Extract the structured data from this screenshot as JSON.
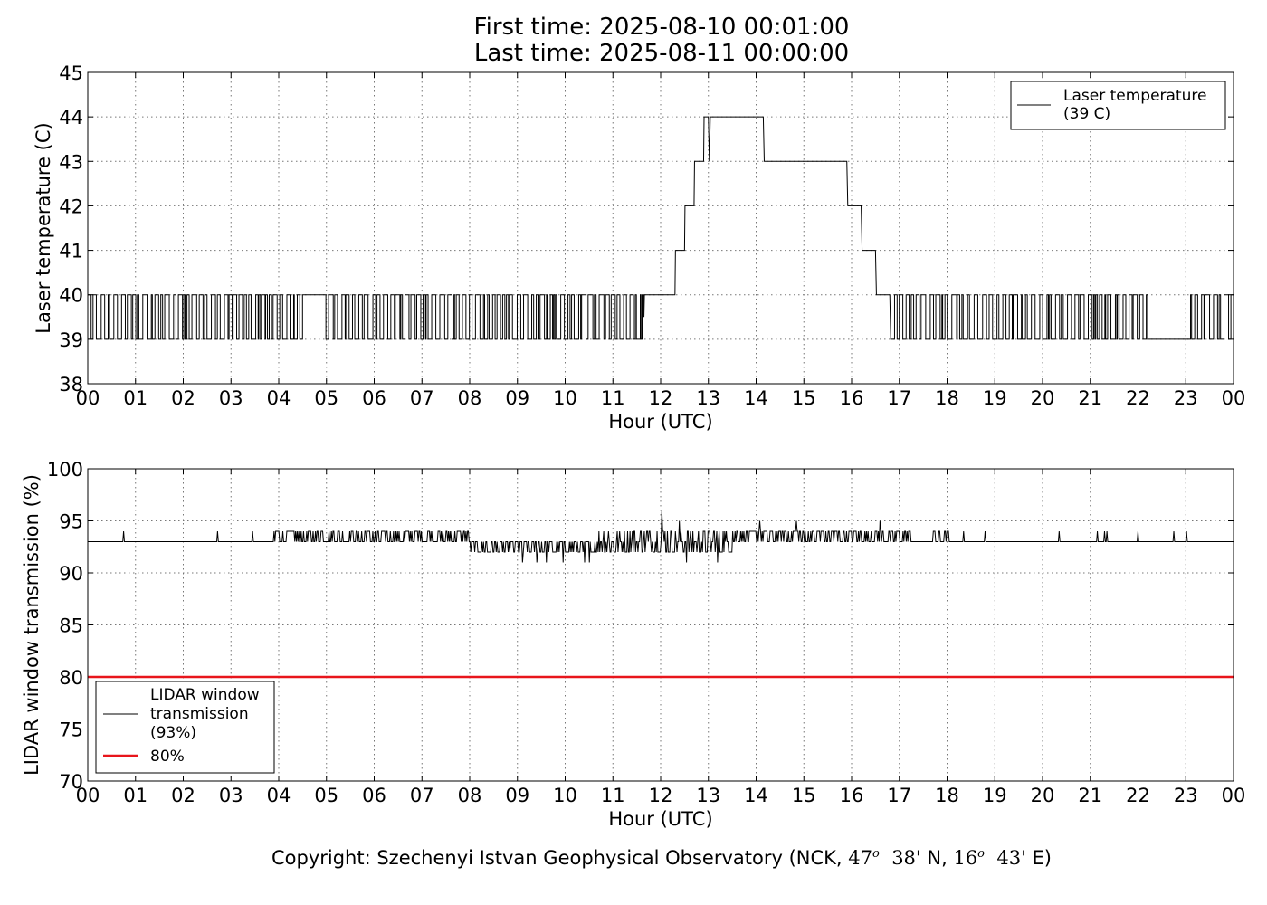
{
  "title": {
    "line1": "First time: 2025-08-10 00:01:00",
    "line2": "Last time: 2025-08-11 00:00:00"
  },
  "footer": {
    "prefix": "Copyright: Szechenyi Istvan Geophysical Observatory (NCK, ",
    "lat_deg": "47",
    "deg_sym": "o",
    "lat_min": "38'",
    "lat_dir": " N, ",
    "lon_deg": "16",
    "lon_min": "43'",
    "lon_dir": " E)"
  },
  "colors": {
    "line": "#000000",
    "threshold": "#e8151b",
    "grid": "#777777"
  },
  "chart_data": [
    {
      "type": "line",
      "ylabel": "Laser temperature (C)",
      "xlabel": "Hour (UTC)",
      "xlim": [
        0,
        24
      ],
      "ylim": [
        38,
        45
      ],
      "x_ticks": [
        "00",
        "01",
        "02",
        "03",
        "04",
        "05",
        "06",
        "07",
        "08",
        "09",
        "10",
        "11",
        "12",
        "13",
        "14",
        "15",
        "16",
        "17",
        "18",
        "19",
        "20",
        "21",
        "22",
        "23",
        "00"
      ],
      "y_ticks": [
        38,
        39,
        40,
        41,
        42,
        43,
        44,
        45
      ],
      "grid": true,
      "legend_position": "top-right",
      "series": [
        {
          "name": "Laser temperature\n(39 C)",
          "legend_lines": [
            "Laser temperature",
            "(39 C)"
          ],
          "color": "#000000",
          "x": [
            0.0,
            11.65,
            11.66,
            12.3,
            12.31,
            12.5,
            12.51,
            12.7,
            12.71,
            12.9,
            12.91,
            13.0,
            13.02,
            13.04,
            14.15,
            14.17,
            15.9,
            15.92,
            16.2,
            16.22,
            16.5,
            16.52,
            16.8,
            16.82,
            16.9,
            24.0
          ],
          "y": [
            39.5,
            39.5,
            40,
            40,
            41,
            41,
            42,
            42,
            43,
            43,
            44,
            44,
            43,
            44,
            44,
            43,
            43,
            42,
            42,
            41,
            41,
            40,
            40,
            39,
            39,
            39.5
          ],
          "oscillation_segments": [
            {
              "from": 0.0,
              "to": 4.55,
              "low": 39,
              "high": 40
            },
            {
              "from": 4.55,
              "to": 4.95,
              "level": 40
            },
            {
              "from": 4.95,
              "to": 11.65,
              "low": 39,
              "high": 40
            },
            {
              "from": 16.9,
              "to": 22.2,
              "low": 39,
              "high": 40
            },
            {
              "from": 22.2,
              "to": 23.1,
              "level": 39
            },
            {
              "from": 23.1,
              "to": 24.0,
              "low": 39,
              "high": 40
            }
          ]
        }
      ]
    },
    {
      "type": "line",
      "ylabel": "LIDAR window transmission (%)",
      "xlabel": "Hour (UTC)",
      "xlim": [
        0,
        24
      ],
      "ylim": [
        70,
        100
      ],
      "x_ticks": [
        "00",
        "01",
        "02",
        "03",
        "04",
        "05",
        "06",
        "07",
        "08",
        "09",
        "10",
        "11",
        "12",
        "13",
        "14",
        "15",
        "16",
        "17",
        "18",
        "19",
        "20",
        "21",
        "22",
        "23",
        "00"
      ],
      "y_ticks": [
        70,
        75,
        80,
        85,
        90,
        95,
        100
      ],
      "grid": true,
      "legend_position": "bottom-left",
      "series": [
        {
          "name": "LIDAR window\ntransmission\n(93%)",
          "legend_lines": [
            "LIDAR window",
            "transmission",
            "(93%)"
          ],
          "color": "#000000",
          "baseline": 93,
          "spikes_up_94": [
            0.75,
            2.72,
            3.45,
            18.35,
            18.8,
            20.35,
            21.15,
            21.3,
            21.35,
            22.0,
            22.75,
            23.02
          ],
          "noisy_segments": [
            {
              "from": 3.9,
              "to": 8.0,
              "values": [
                93,
                94
              ]
            },
            {
              "from": 8.0,
              "to": 10.7,
              "values": [
                92,
                93
              ]
            },
            {
              "from": 10.7,
              "to": 13.5,
              "values": [
                92,
                93,
                94
              ]
            },
            {
              "from": 13.5,
              "to": 17.3,
              "values": [
                93,
                94
              ]
            },
            {
              "from": 17.7,
              "to": 18.05,
              "values": [
                93,
                94
              ]
            }
          ],
          "peaks": [
            {
              "x": 12.02,
              "y": 96
            },
            {
              "x": 12.4,
              "y": 95
            },
            {
              "x": 14.08,
              "y": 95
            },
            {
              "x": 14.85,
              "y": 95
            },
            {
              "x": 16.6,
              "y": 95
            }
          ],
          "dips": [
            {
              "x": 9.1,
              "y": 91
            },
            {
              "x": 9.4,
              "y": 91
            },
            {
              "x": 9.6,
              "y": 91
            },
            {
              "x": 9.95,
              "y": 91
            },
            {
              "x": 10.4,
              "y": 91
            },
            {
              "x": 10.5,
              "y": 91
            },
            {
              "x": 12.55,
              "y": 91
            },
            {
              "x": 13.2,
              "y": 91
            }
          ]
        },
        {
          "name": "80%",
          "color": "#e8151b",
          "x": [
            0,
            24
          ],
          "y": [
            80,
            80
          ]
        }
      ]
    }
  ]
}
